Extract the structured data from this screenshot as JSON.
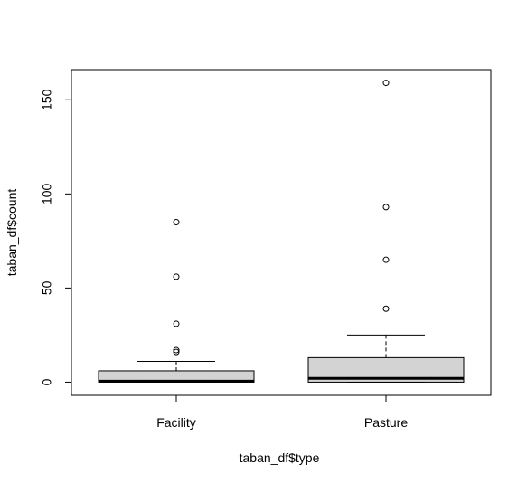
{
  "chart_data": {
    "type": "boxplot",
    "xlabel": "taban_df$type",
    "ylabel": "taban_df$count",
    "categories": [
      "Facility",
      "Pasture"
    ],
    "yticks": [
      "0",
      "50",
      "100",
      "150"
    ],
    "ylim": [
      -7,
      166
    ],
    "grid": false,
    "box_fill": "#d3d3d3",
    "series": [
      {
        "category": "Facility",
        "whisker_low": 0,
        "q1": 0,
        "median": 0.5,
        "q3": 6,
        "whisker_high": 11,
        "outliers": [
          16,
          17,
          31,
          56,
          85
        ]
      },
      {
        "category": "Pasture",
        "whisker_low": 0,
        "q1": 0,
        "median": 2,
        "q3": 13,
        "whisker_high": 25,
        "outliers": [
          39,
          65,
          93,
          159
        ]
      }
    ]
  }
}
